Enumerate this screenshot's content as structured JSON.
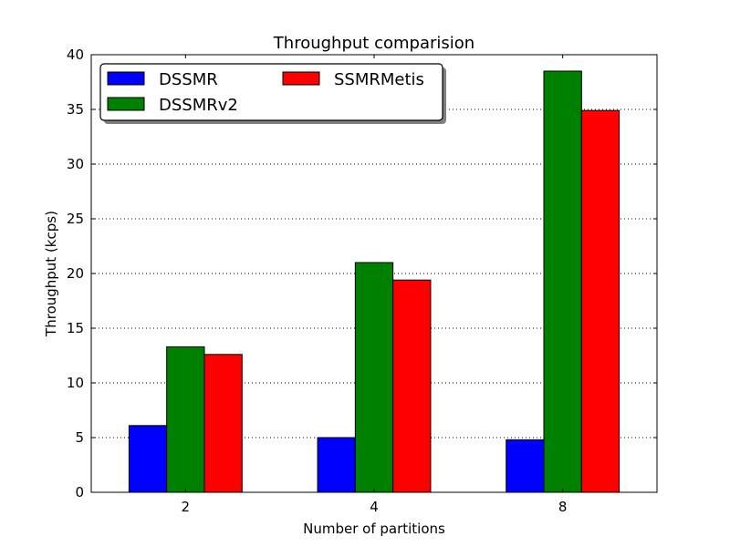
{
  "chart_data": {
    "type": "bar",
    "title": "Throughput comparision",
    "xlabel": "Number of partitions",
    "ylabel": "Throughput (kcps)",
    "categories": [
      "2",
      "4",
      "8"
    ],
    "ylim": [
      0,
      40
    ],
    "yticks": [
      0,
      5,
      10,
      15,
      20,
      25,
      30,
      35,
      40
    ],
    "grid": "horizontal-dotted",
    "legend_position": "top-left",
    "series": [
      {
        "name": "DSSMR",
        "color": "#0000ff",
        "values": [
          6.1,
          5.0,
          4.8
        ]
      },
      {
        "name": "DSSMRv2",
        "color": "#008000",
        "values": [
          13.3,
          21.0,
          38.5
        ]
      },
      {
        "name": "SSMRMetis",
        "color": "#ff0000",
        "values": [
          12.6,
          19.4,
          34.9
        ]
      }
    ]
  }
}
